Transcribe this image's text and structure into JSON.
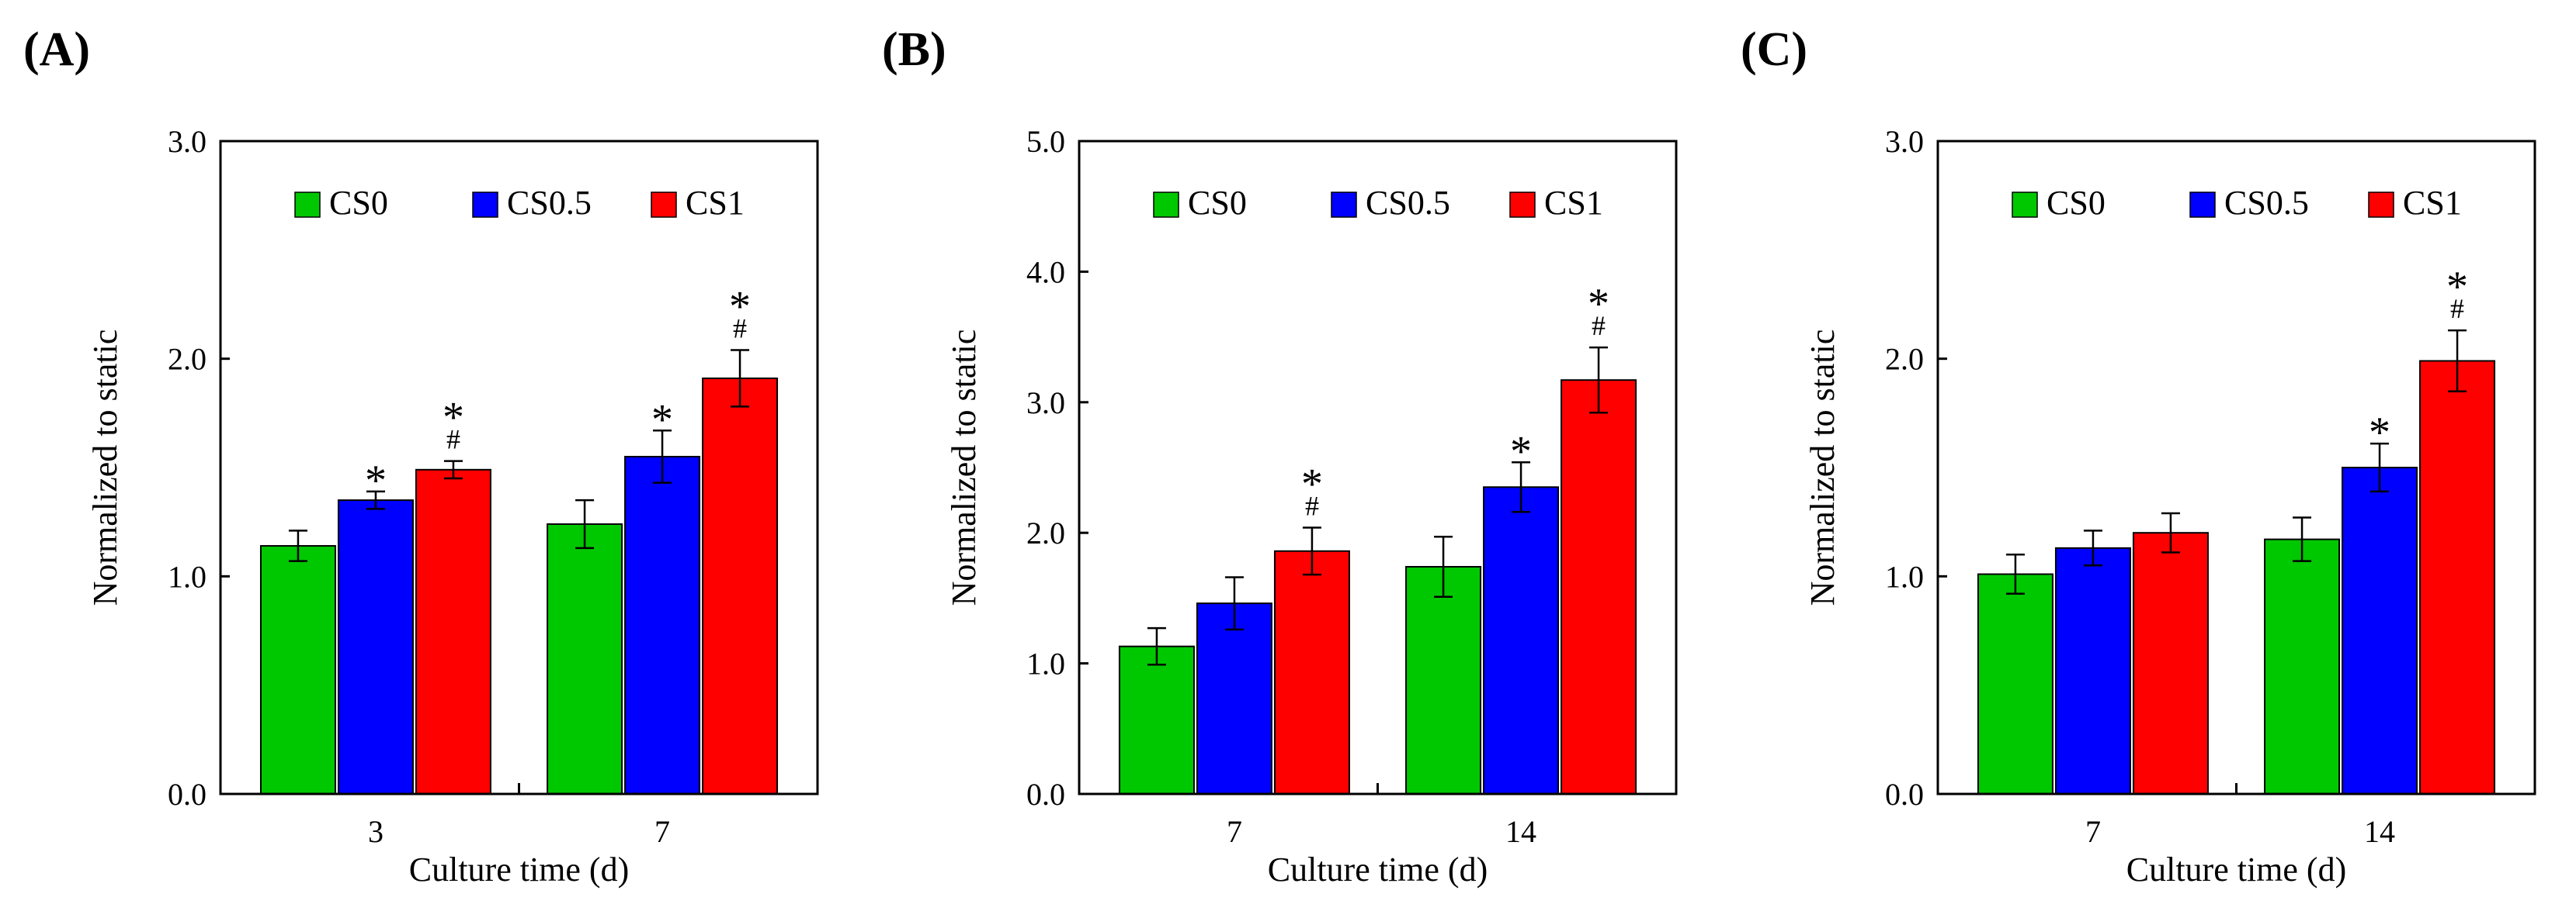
{
  "colors": {
    "CS0": "#00c800",
    "CS0.5": "#0000ff",
    "CS1": "#ff0000",
    "axis": "#000000"
  },
  "chart_data": [
    {
      "type": "bar",
      "panel_label": "(A)",
      "xlabel": "Culture time (d)",
      "ylabel": "Normalized to static",
      "ylim": [
        0,
        3
      ],
      "yticks": [
        0,
        1,
        2,
        3
      ],
      "ytick_labels": [
        "0.0",
        "1.0",
        "2.0",
        "3.0"
      ],
      "legend": [
        "CS0",
        "CS0.5",
        "CS1"
      ],
      "legend_position": "top",
      "categories": [
        "3",
        "7"
      ],
      "series": [
        {
          "name": "CS0",
          "values": [
            1.14,
            1.24
          ],
          "errors": [
            0.07,
            0.11
          ],
          "star": [
            "",
            ""
          ],
          "hash": [
            "",
            ""
          ]
        },
        {
          "name": "CS0.5",
          "values": [
            1.35,
            1.55
          ],
          "errors": [
            0.04,
            0.12
          ],
          "star": [
            "*",
            "*"
          ],
          "hash": [
            "",
            ""
          ]
        },
        {
          "name": "CS1",
          "values": [
            1.49,
            1.91
          ],
          "errors": [
            0.04,
            0.13
          ],
          "star": [
            "*",
            "*"
          ],
          "hash": [
            "#",
            "#"
          ]
        }
      ]
    },
    {
      "type": "bar",
      "panel_label": "(B)",
      "xlabel": "Culture time (d)",
      "ylabel": "Normalized to static",
      "ylim": [
        0,
        5
      ],
      "yticks": [
        0,
        1,
        2,
        3,
        4,
        5
      ],
      "ytick_labels": [
        "0.0",
        "1.0",
        "2.0",
        "3.0",
        "4.0",
        "5.0"
      ],
      "legend": [
        "CS0",
        "CS0.5",
        "CS1"
      ],
      "legend_position": "top",
      "categories": [
        "7",
        "14"
      ],
      "series": [
        {
          "name": "CS0",
          "values": [
            1.13,
            1.74
          ],
          "errors": [
            0.14,
            0.23
          ],
          "star": [
            "",
            ""
          ],
          "hash": [
            "",
            ""
          ]
        },
        {
          "name": "CS0.5",
          "values": [
            1.46,
            2.35
          ],
          "errors": [
            0.2,
            0.19
          ],
          "star": [
            "",
            "*"
          ],
          "hash": [
            "",
            ""
          ]
        },
        {
          "name": "CS1",
          "values": [
            1.86,
            3.17
          ],
          "errors": [
            0.18,
            0.25
          ],
          "star": [
            "*",
            "*"
          ],
          "hash": [
            "#",
            "#"
          ]
        }
      ]
    },
    {
      "type": "bar",
      "panel_label": "(C)",
      "xlabel": "Culture time (d)",
      "ylabel": "Normalized to static",
      "ylim": [
        0,
        3
      ],
      "yticks": [
        0,
        1,
        2,
        3
      ],
      "ytick_labels": [
        "0.0",
        "1.0",
        "2.0",
        "3.0"
      ],
      "legend": [
        "CS0",
        "CS0.5",
        "CS1"
      ],
      "legend_position": "top",
      "categories": [
        "7",
        "14"
      ],
      "series": [
        {
          "name": "CS0",
          "values": [
            1.01,
            1.17
          ],
          "errors": [
            0.09,
            0.1
          ],
          "star": [
            "",
            ""
          ],
          "hash": [
            "",
            ""
          ]
        },
        {
          "name": "CS0.5",
          "values": [
            1.13,
            1.5
          ],
          "errors": [
            0.08,
            0.11
          ],
          "star": [
            "",
            "*"
          ],
          "hash": [
            "",
            ""
          ]
        },
        {
          "name": "CS1",
          "values": [
            1.2,
            1.99
          ],
          "errors": [
            0.09,
            0.14
          ],
          "star": [
            "",
            "*"
          ],
          "hash": [
            "",
            "#"
          ]
        }
      ]
    }
  ]
}
